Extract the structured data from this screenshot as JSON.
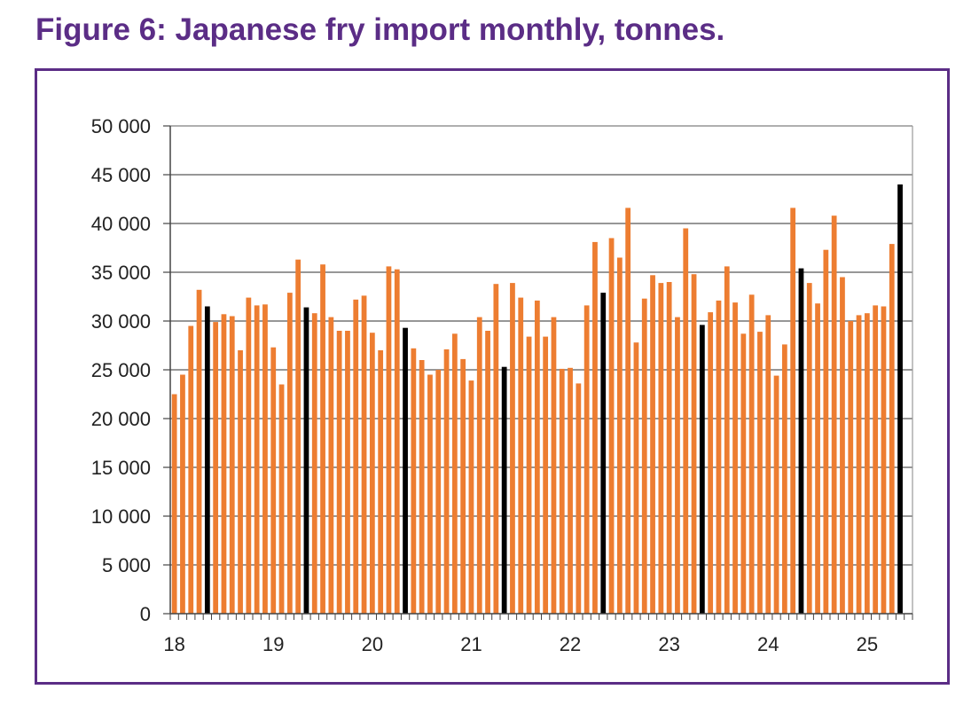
{
  "figure_title": "Figure 6: Japanese fry import monthly, tonnes.",
  "colors": {
    "title": "#5b2d86",
    "frame": "#5b2d86",
    "bar": "#ed7d31",
    "highlight_bar": "#000000",
    "grid": "#595959"
  },
  "chart_data": {
    "type": "bar",
    "title": "Figure 6: Japanese fry import monthly, tonnes.",
    "xlabel": "",
    "ylabel": "",
    "ylim": [
      0,
      50000
    ],
    "yticks": [
      0,
      5000,
      10000,
      15000,
      20000,
      25000,
      30000,
      35000,
      40000,
      45000,
      50000
    ],
    "ytick_labels": [
      "0",
      "5 000",
      "10 000",
      "15 000",
      "20 000",
      "25 000",
      "30 000",
      "35 000",
      "40 000",
      "45 000",
      "50 000"
    ],
    "year_labels": [
      "18",
      "19",
      "20",
      "21",
      "22",
      "23",
      "24",
      "25"
    ],
    "grid": true,
    "highlight_note": "May of each year shown in black",
    "highlight_month_index": 4,
    "series": [
      {
        "name": "Monthly imports (tonnes)",
        "values": [
          22500,
          24500,
          29500,
          33200,
          31500,
          29900,
          30700,
          30500,
          27000,
          32400,
          31600,
          31700,
          27300,
          23500,
          32900,
          36300,
          31400,
          30800,
          35800,
          30400,
          29000,
          29000,
          32200,
          32600,
          28800,
          27000,
          35600,
          35300,
          29300,
          27200,
          26000,
          24500,
          25000,
          27100,
          28700,
          26100,
          23900,
          30400,
          29000,
          33800,
          25300,
          33900,
          32400,
          28400,
          32100,
          28400,
          30400,
          25100,
          25200,
          23600,
          31600,
          38100,
          32900,
          38500,
          36500,
          41600,
          27800,
          32300,
          34700,
          33900,
          34000,
          30400,
          39500,
          34800,
          29600,
          30900,
          32100,
          35600,
          31900,
          28700,
          32700,
          28900,
          30600,
          24400,
          27600,
          41600,
          35400,
          33900,
          31800,
          37300,
          40800,
          34500,
          30000,
          30600,
          30800,
          31600,
          31500,
          37900,
          44000
        ]
      }
    ]
  }
}
